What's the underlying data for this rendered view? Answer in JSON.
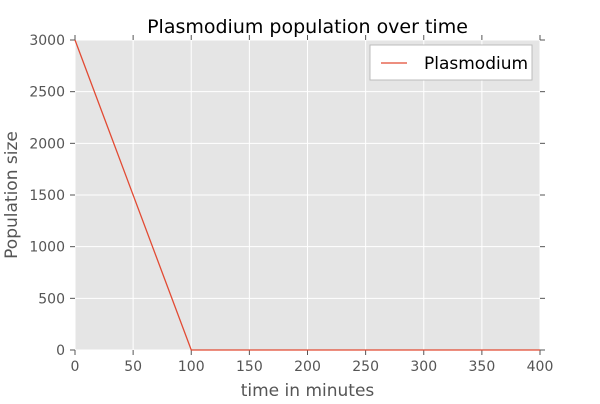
{
  "chart_data": {
    "type": "line",
    "title": "Plasmodium population over time",
    "xlabel": "time in minutes",
    "ylabel": "Population size",
    "xlim": [
      0,
      400
    ],
    "ylim": [
      0,
      3000
    ],
    "xticks": [
      0,
      50,
      100,
      150,
      200,
      250,
      300,
      350,
      400
    ],
    "yticks": [
      0,
      500,
      1000,
      1500,
      2000,
      2500,
      3000
    ],
    "grid": true,
    "legend_position": "top-right",
    "series": [
      {
        "name": "Plasmodium",
        "color": "#e24a33",
        "x": [
          0,
          100,
          400
        ],
        "y": [
          3000,
          0,
          0
        ]
      }
    ]
  },
  "colors": {
    "plot_background": "#e5e5e5",
    "grid": "#ffffff",
    "text": "#555555",
    "title": "#000000",
    "legend_background": "#ffffff",
    "legend_border": "#bcbcbc"
  }
}
